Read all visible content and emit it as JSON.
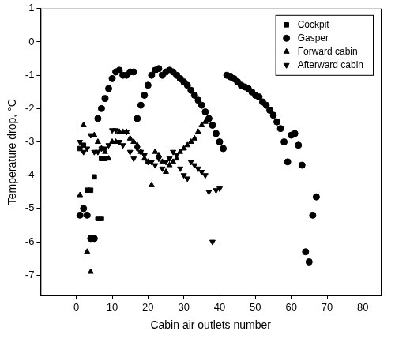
{
  "chart_data": {
    "type": "scatter",
    "x_label": "Cabin air outlets number",
    "y_label": "Temperature drop, °C",
    "xlim": [
      -10,
      85
    ],
    "xticks": [
      0,
      10,
      20,
      30,
      40,
      50,
      60,
      70,
      80
    ],
    "ylim": [
      -7.6,
      1
    ],
    "yticks": [
      -7,
      -6,
      -5,
      -4,
      -3,
      -2,
      -1,
      0,
      1
    ],
    "grid": false,
    "legend": "upper right",
    "series": [
      {
        "name": "Cockpit",
        "color": "#000000",
        "marker": "square",
        "x": [
          1,
          2,
          3,
          4,
          5,
          6,
          7,
          7,
          8
        ],
        "values": [
          -3.2,
          -3.1,
          -4.45,
          -4.45,
          -4.05,
          -5.3,
          -5.3,
          -3.5,
          -3.5
        ]
      },
      {
        "name": "Gasper",
        "color": "#000000",
        "marker": "circle",
        "x": [
          1,
          2,
          3,
          4,
          5,
          6,
          7,
          8,
          9,
          10,
          11,
          12,
          13,
          14,
          15,
          16,
          17,
          18,
          19,
          20,
          21,
          22,
          23,
          24,
          25,
          26,
          27,
          28,
          29,
          30,
          31,
          32,
          33,
          34,
          35,
          36,
          37,
          38,
          39,
          40,
          41,
          42,
          43,
          44,
          45,
          46,
          47,
          48,
          49,
          50,
          51,
          52,
          53,
          54,
          55,
          56,
          57,
          58,
          59,
          60,
          61,
          62,
          63,
          64,
          65,
          66,
          67
        ],
        "values": [
          -5.2,
          -5.0,
          -5.2,
          -5.9,
          -5.9,
          -2.3,
          -2.0,
          -1.7,
          -1.4,
          -1.1,
          -0.9,
          -0.85,
          -1.0,
          -1.0,
          -0.9,
          -0.9,
          -2.3,
          -1.9,
          -1.6,
          -1.3,
          -1.0,
          -0.85,
          -0.8,
          -1.0,
          -0.9,
          -0.85,
          -0.9,
          -1.0,
          -1.1,
          -1.2,
          -1.3,
          -1.45,
          -1.6,
          -1.75,
          -1.9,
          -2.1,
          -2.3,
          -2.5,
          -2.75,
          -3.0,
          -3.2,
          -1.0,
          -1.05,
          -1.1,
          -1.2,
          -1.3,
          -1.35,
          -1.4,
          -1.5,
          -1.6,
          -1.65,
          -1.8,
          -1.9,
          -2.05,
          -2.2,
          -2.4,
          -2.6,
          -3.0,
          -3.6,
          -2.8,
          -2.75,
          -3.1,
          -3.7,
          -6.3,
          -6.6,
          -5.2,
          -4.65
        ]
      },
      {
        "name": "Forward cabin",
        "color": "#000000",
        "marker": "triangle",
        "x": [
          1,
          2,
          3,
          4,
          5,
          6,
          7,
          8,
          9,
          10,
          11,
          12,
          13,
          14,
          15,
          16,
          17,
          18,
          19,
          20,
          21,
          22,
          23,
          24,
          25,
          26,
          27,
          28,
          29,
          30,
          31,
          32,
          33,
          34,
          35,
          36
        ],
        "values": [
          -4.6,
          -2.5,
          -6.3,
          -6.9,
          -2.8,
          -3.0,
          -3.2,
          -3.3,
          -3.5,
          -3.0,
          -3.0,
          -2.7,
          -2.7,
          -2.7,
          -2.9,
          -3.0,
          -3.1,
          -3.3,
          -3.5,
          -3.6,
          -4.3,
          -3.3,
          -3.4,
          -3.6,
          -3.9,
          -3.7,
          -3.6,
          -3.5,
          -3.3,
          -3.2,
          -3.1,
          -3.0,
          -2.9,
          -2.7,
          -2.5,
          -2.4
        ]
      },
      {
        "name": "Afterward cabin",
        "color": "#000000",
        "marker": "triangle_down",
        "x": [
          1,
          2,
          3,
          4,
          5,
          6,
          7,
          8,
          9,
          10,
          11,
          12,
          13,
          14,
          15,
          16,
          17,
          18,
          19,
          20,
          21,
          22,
          23,
          24,
          25,
          26,
          27,
          28,
          29,
          30,
          31,
          32,
          33,
          34,
          35,
          36,
          37,
          38,
          39,
          40
        ],
        "values": [
          -3.0,
          -3.3,
          -3.2,
          -2.8,
          -3.3,
          -3.3,
          -3.2,
          -3.2,
          -3.1,
          -2.65,
          -2.65,
          -3.0,
          -3.1,
          -2.7,
          -3.3,
          -3.5,
          -3.2,
          -3.3,
          -3.4,
          -3.6,
          -3.6,
          -3.7,
          -3.5,
          -3.8,
          -3.6,
          -3.5,
          -3.3,
          -3.4,
          -3.8,
          -4.0,
          -4.1,
          -3.6,
          -3.7,
          -3.8,
          -3.9,
          -4.0,
          -4.5,
          -6.0,
          -4.45,
          -4.4
        ]
      }
    ]
  }
}
